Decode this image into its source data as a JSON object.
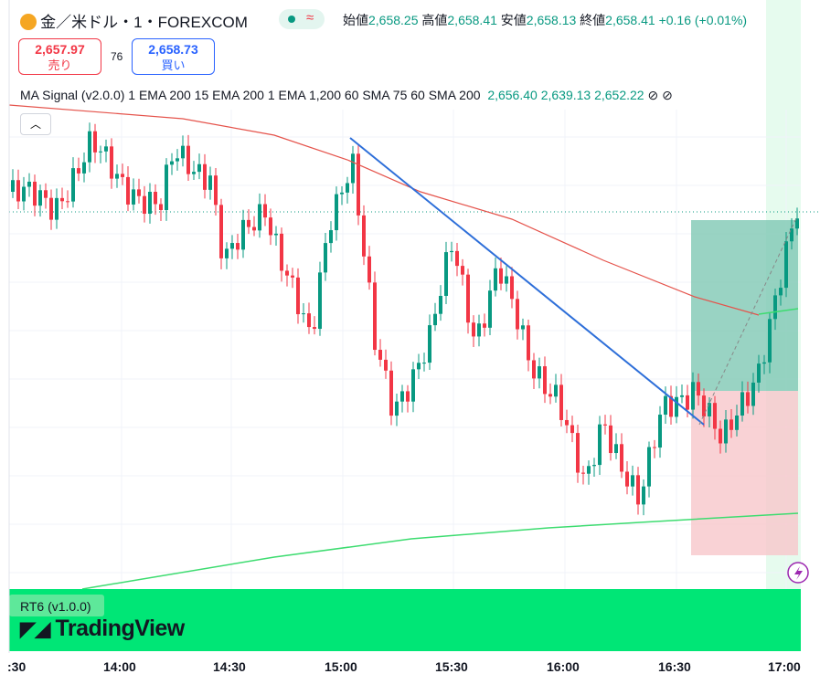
{
  "header": {
    "symbol": "金／米ドル・1・FOREXCOM",
    "open_label": "始値",
    "open": "2,658.25",
    "high_label": "高値",
    "high": "2,658.41",
    "low_label": "安値",
    "low": "2,658.13",
    "close_label": "終値",
    "close": "2,658.41",
    "change": "+0.16 (+0.01%)"
  },
  "trade": {
    "sell_price": "2,657.97",
    "sell_label": "売り",
    "spread": "76",
    "buy_price": "2,658.73",
    "buy_label": "買い"
  },
  "indicator": {
    "name": "MA Signal (v2.0.0) 1 EMA 200 15 EMA 200 1 EMA 1,200 60 SMA 75 60 SMA 200",
    "values": [
      "2,656.40",
      "2,639.13",
      "2,652.22"
    ]
  },
  "panel": {
    "name": "RT6 (v1.0.0)",
    "brand": "TradingView"
  },
  "time_axis": [
    ":30",
    "14:00",
    "14:30",
    "15:00",
    "15:30",
    "16:00",
    "16:30",
    "17:00"
  ]
}
